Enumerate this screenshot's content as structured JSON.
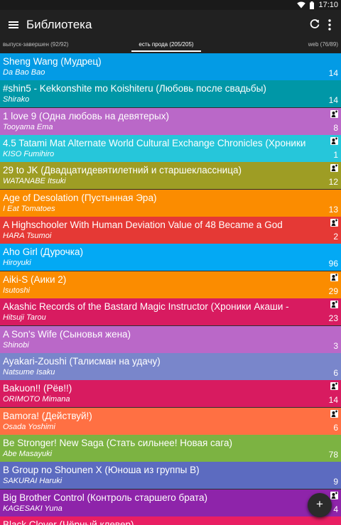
{
  "status_bar": {
    "time": "17:10",
    "icons": [
      "wifi-icon",
      "battery-icon"
    ]
  },
  "app_bar": {
    "title": "Библиотека",
    "icons": [
      "menu-icon",
      "refresh-icon",
      "more-vert-icon"
    ]
  },
  "tabs": [
    {
      "label": "выпуск-завершен (92/92)"
    },
    {
      "label": "есть прода (205/205)",
      "selected": true
    },
    {
      "label": "web (76/89)"
    }
  ],
  "items": [
    {
      "title": "Sheng Wang (Мудрец)",
      "author": "Da Bao Bao",
      "count": "14",
      "color": "#039be5",
      "badge": false
    },
    {
      "title": "#shin5 - Kekkonshite mo Koishiteru (Любовь после свадьбы)",
      "author": "Shirako",
      "count": "14",
      "color": "#0097a7",
      "badge": false
    },
    {
      "title": "1 love 9 (Одна любовь на девятерых)",
      "author": "Tooyama Ema",
      "count": "8",
      "color": "#ba68c8",
      "badge": true
    },
    {
      "title": "4.5 Tatami Mat Alternate World Cultural Exchange Chronicles (Хроники",
      "author": "KISO Fumihiro",
      "count": "1",
      "color": "#26c6da",
      "badge": true
    },
    {
      "title": "29 to JK (Двадцатидевятилетний и старшеклассница)",
      "author": "WATANABE Itsuki",
      "count": "12",
      "color": "#9e9d24",
      "badge": true
    },
    {
      "title": "Age of Desolation (Пустынная Эра)",
      "author": "I Eat Tomatoes",
      "count": "13",
      "color": "#fb8c00",
      "badge": false
    },
    {
      "title": "A Highschooler With Human Deviation Value of 48 Became a God",
      "author": "HARA Tsumoi",
      "count": "2",
      "color": "#e53935",
      "badge": true
    },
    {
      "title": "Aho Girl (Дурочка)",
      "author": "Hiroyuki",
      "count": "96",
      "color": "#03a9f4",
      "badge": false
    },
    {
      "title": "Aiki-S (Аики 2)",
      "author": "Isutoshi",
      "count": "29",
      "color": "#fb8c00",
      "badge": true
    },
    {
      "title": "Akashic Records of the Bastard Magic Instructor (Хроники Акаши -",
      "author": "Hitsuji Tarou",
      "count": "23",
      "color": "#d81b60",
      "badge": true
    },
    {
      "title": "A Son's Wife (Сыновья жена)",
      "author": "Shinobi",
      "count": "3",
      "color": "#ba68c8",
      "badge": false
    },
    {
      "title": "Ayakari-Zoushi (Талисман на удачу)",
      "author": "Natsume Isaku",
      "count": "6",
      "color": "#7986cb",
      "badge": false
    },
    {
      "title": "Bakuon!! (Рёв!!)",
      "author": "ORIMOTO Mimana",
      "count": "14",
      "color": "#d81b60",
      "badge": true
    },
    {
      "title": "Bamora! (Действуй!)",
      "author": "Osada Yoshimi",
      "count": "6",
      "color": "#ff7043",
      "badge": true
    },
    {
      "title": "Be Stronger! New Saga (Стать сильнее! Новая сага)",
      "author": "Abe Masayuki",
      "count": "78",
      "color": "#7cb342",
      "badge": false
    },
    {
      "title": "B Group no Shounen X (Юноша из группы B)",
      "author": "SAKURAI Haruki",
      "count": "9",
      "color": "#5c6bc0",
      "badge": false
    },
    {
      "title": "Big Brother Control (Контроль старшего брата)",
      "author": "KAGESAKI Yuna",
      "count": "4",
      "color": "#8e24aa",
      "badge": true
    },
    {
      "title": "Black Clover (Чёрный клевер)",
      "author": "",
      "count": "",
      "color": "#e91e63",
      "badge": false
    }
  ],
  "fab": {
    "label": "+"
  }
}
